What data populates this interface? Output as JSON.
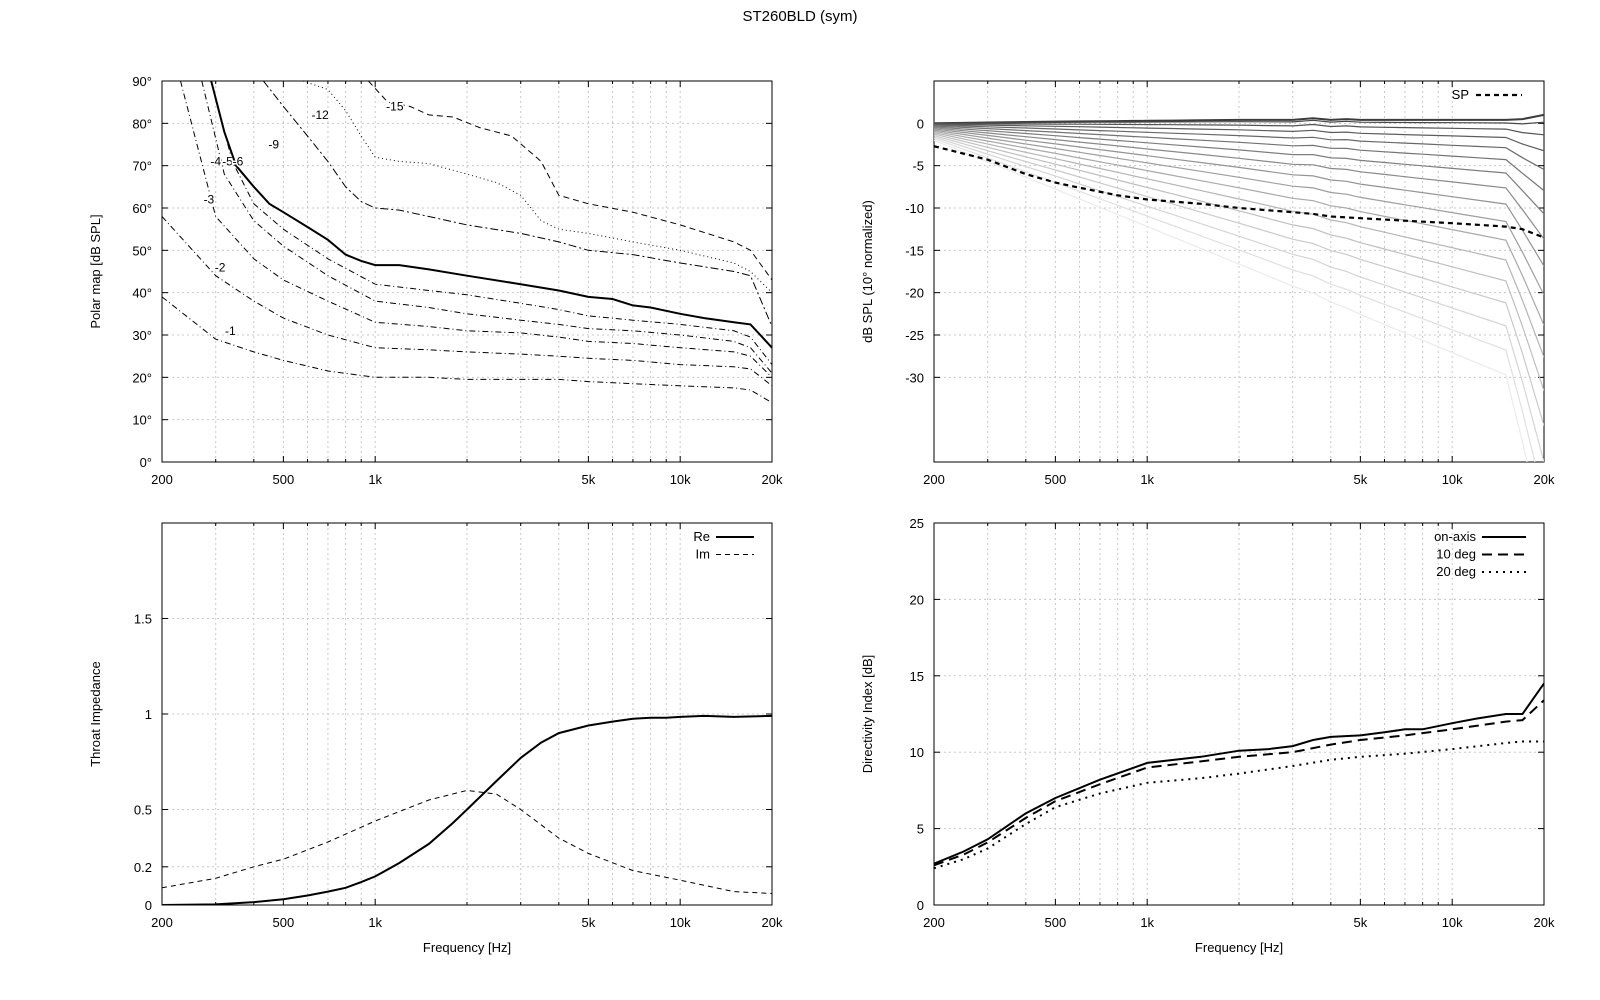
{
  "title": "ST260BLD (sym)",
  "chart_data": [
    {
      "id": "polar",
      "type": "line",
      "title": "",
      "xlabel": "",
      "ylabel": "Polar map [dB SPL]",
      "xscale": "log",
      "xlim": [
        200,
        20000
      ],
      "ylim": [
        0,
        90
      ],
      "xticks": [
        200,
        500,
        1000,
        5000,
        10000,
        20000
      ],
      "xtick_labels": [
        "200",
        "500",
        "1k",
        "5k",
        "10k",
        "20k"
      ],
      "yticks": [
        0,
        10,
        20,
        30,
        40,
        50,
        60,
        70,
        80,
        90
      ],
      "ytick_labels": [
        "0°",
        "10°",
        "20°",
        "30°",
        "40°",
        "50°",
        "60°",
        "70°",
        "80°",
        "90°"
      ],
      "grid": true,
      "contours": [
        {
          "label": "-1",
          "label_at": [
            335,
            31
          ],
          "x": [
            200,
            300,
            400,
            500,
            700,
            1000,
            1500,
            2000,
            3000,
            4000,
            5000,
            7000,
            10000,
            15000,
            17000,
            20000
          ],
          "y": [
            39,
            29,
            26,
            24,
            21.5,
            20,
            20,
            19.5,
            19.5,
            19.5,
            19,
            18.5,
            18,
            17.5,
            17,
            14
          ]
        },
        {
          "label": "-2",
          "label_at": [
            310,
            46
          ],
          "x": [
            200,
            300,
            400,
            500,
            700,
            1000,
            1500,
            2000,
            3000,
            4000,
            5000,
            7000,
            10000,
            15000,
            17000,
            20000
          ],
          "y": [
            58,
            44,
            38,
            34,
            30,
            27,
            26.5,
            26,
            25.5,
            25,
            24.5,
            24,
            23,
            22.5,
            22,
            18
          ]
        },
        {
          "label": "-3",
          "label_at": [
            285,
            62
          ],
          "x": [
            230,
            300,
            400,
            500,
            700,
            1000,
            1500,
            2000,
            3000,
            4000,
            5000,
            7000,
            10000,
            15000,
            17000,
            20000
          ],
          "y": [
            90,
            58,
            48,
            43,
            38,
            33,
            32,
            31,
            30.5,
            29.5,
            28.5,
            28,
            27,
            26,
            25,
            20
          ]
        },
        {
          "label": "-4",
          "label_at": [
            300,
            71
          ],
          "x": [
            270,
            320,
            400,
            500,
            700,
            1000,
            1500,
            2000,
            3000,
            4000,
            5000,
            7000,
            10000,
            15000,
            17000,
            20000
          ],
          "y": [
            90,
            68,
            57,
            51,
            44,
            38,
            36.5,
            35,
            33.5,
            32.5,
            31.5,
            31,
            30,
            28.5,
            27,
            21
          ]
        },
        {
          "label": "-5",
          "label_at": [
            328,
            71
          ],
          "x": [
            290,
            340,
            400,
            500,
            700,
            1000,
            1500,
            2000,
            3000,
            4000,
            5000,
            7000,
            10000,
            15000,
            17000,
            20000
          ],
          "y": [
            90,
            71,
            61,
            55,
            48,
            42,
            40.5,
            39.5,
            37.5,
            36,
            34.5,
            33.5,
            32.5,
            31,
            29.5,
            23
          ]
        },
        {
          "label": "-6",
          "label_at": [
            355,
            71
          ],
          "bold": true,
          "x": [
            290,
            320,
            350,
            400,
            450,
            500,
            600,
            700,
            800,
            900,
            1000,
            1200,
            1500,
            2000,
            3000,
            4000,
            5000,
            6000,
            7000,
            8000,
            10000,
            12000,
            15000,
            17000,
            20000
          ],
          "y": [
            90,
            78,
            70,
            65,
            61,
            59,
            55.5,
            52.5,
            49,
            47.5,
            46.5,
            46.5,
            45.5,
            44,
            42,
            40.5,
            39,
            38.5,
            37,
            36.5,
            35,
            34,
            33,
            32.5,
            27
          ]
        },
        {
          "label": "-9",
          "label_at": [
            465,
            75
          ],
          "x": [
            430,
            500,
            600,
            700,
            800,
            900,
            1000,
            1200,
            1500,
            2000,
            3000,
            4000,
            5000,
            7000,
            10000,
            15000,
            17000,
            20000
          ],
          "y": [
            90,
            84,
            77,
            71,
            65,
            61.5,
            60,
            59.5,
            58,
            56,
            54,
            52,
            50,
            49,
            47,
            45,
            44,
            32
          ]
        },
        {
          "label": "-12",
          "label_at": [
            660,
            82
          ],
          "x": [
            580,
            700,
            800,
            900,
            1000,
            1200,
            1500,
            2000,
            2500,
            3000,
            3500,
            4000,
            5000,
            7000,
            10000,
            15000,
            17000,
            20000
          ],
          "y": [
            90,
            88,
            83,
            77,
            72,
            71,
            70.5,
            68,
            66,
            63,
            57,
            55,
            54,
            52,
            50,
            47,
            45,
            40
          ]
        },
        {
          "label": "-15",
          "label_at": [
            1160,
            84
          ],
          "x": [
            950,
            1100,
            1300,
            1500,
            1800,
            2200,
            2800,
            3500,
            4000,
            5000,
            7000,
            10000,
            15000,
            17000,
            20000
          ],
          "y": [
            90,
            85,
            84,
            82,
            81.5,
            79,
            77,
            71,
            63,
            61,
            59,
            56,
            52,
            50,
            43
          ]
        }
      ]
    },
    {
      "id": "normalized",
      "type": "line",
      "title": "",
      "xlabel": "",
      "ylabel": "dB SPL (10° normalized)",
      "xscale": "log",
      "xlim": [
        200,
        20000
      ],
      "ylim": [
        -40,
        5
      ],
      "xticks": [
        200,
        500,
        1000,
        5000,
        10000,
        20000
      ],
      "xtick_labels": [
        "200",
        "500",
        "1k",
        "5k",
        "10k",
        "20k"
      ],
      "yticks": [
        0,
        -5,
        -10,
        -15,
        -20,
        -25,
        -30
      ],
      "ytick_labels": [
        "0",
        "-5",
        "-10",
        "-15",
        "-20",
        "-25",
        "-30"
      ],
      "grid": true,
      "legend": {
        "position": "top-right",
        "entries": [
          "SP"
        ]
      },
      "sp_series": {
        "name": "SP",
        "x": [
          200,
          300,
          400,
          500,
          600,
          800,
          1000,
          1500,
          2000,
          3000,
          3500,
          4000,
          5000,
          7000,
          10000,
          15000,
          17000,
          20000
        ],
        "y": [
          -2.7,
          -4.3,
          -6,
          -7,
          -7.6,
          -8.5,
          -9,
          -9.5,
          -10,
          -10.5,
          -10.7,
          -11,
          -11.2,
          -11.5,
          -11.8,
          -12.2,
          -12.5,
          -13.5
        ]
      },
      "fan_count": 17,
      "fan_top_x": [
        200,
        300,
        500,
        1000,
        2000,
        3000,
        3500,
        4000,
        4500,
        5000,
        7000,
        10000,
        15000,
        17000,
        20000
      ],
      "fan_top_y": [
        0,
        0.1,
        0.2,
        0.3,
        0.4,
        0.4,
        0.6,
        0.4,
        0.5,
        0.4,
        0.4,
        0.4,
        0.4,
        0.5,
        1
      ]
    },
    {
      "id": "impedance",
      "type": "line",
      "title": "",
      "xlabel": "Frequency [Hz]",
      "ylabel": "Throat Impedance",
      "xscale": "log",
      "xlim": [
        200,
        20000
      ],
      "ylim": [
        0,
        2
      ],
      "xticks": [
        200,
        500,
        1000,
        5000,
        10000,
        20000
      ],
      "xtick_labels": [
        "200",
        "500",
        "1k",
        "5k",
        "10k",
        "20k"
      ],
      "yticks": [
        0,
        0.2,
        0.5,
        1,
        1.5
      ],
      "ytick_labels": [
        "0",
        "0.2",
        "0.5",
        "1",
        "1.5"
      ],
      "grid": true,
      "legend": {
        "position": "top-right",
        "entries": [
          "Re",
          "Im"
        ]
      },
      "series": [
        {
          "name": "Re",
          "style": "solid",
          "x": [
            200,
            300,
            400,
            500,
            600,
            700,
            800,
            900,
            1000,
            1200,
            1500,
            1800,
            2000,
            2500,
            3000,
            3500,
            4000,
            5000,
            6000,
            7000,
            8000,
            9000,
            10000,
            12000,
            15000,
            20000
          ],
          "y": [
            0,
            0.003,
            0.015,
            0.03,
            0.05,
            0.07,
            0.09,
            0.12,
            0.15,
            0.22,
            0.32,
            0.43,
            0.5,
            0.65,
            0.77,
            0.85,
            0.9,
            0.94,
            0.96,
            0.975,
            0.98,
            0.98,
            0.985,
            0.99,
            0.985,
            0.99
          ]
        },
        {
          "name": "Im",
          "style": "dashed",
          "x": [
            200,
            300,
            400,
            500,
            700,
            1000,
            1500,
            2000,
            2500,
            3000,
            3500,
            4000,
            5000,
            7000,
            10000,
            15000,
            20000
          ],
          "y": [
            0.09,
            0.14,
            0.2,
            0.24,
            0.33,
            0.44,
            0.55,
            0.6,
            0.58,
            0.5,
            0.42,
            0.35,
            0.27,
            0.18,
            0.13,
            0.07,
            0.06
          ]
        }
      ]
    },
    {
      "id": "directivity",
      "type": "line",
      "title": "",
      "xlabel": "Frequency [Hz]",
      "ylabel": "Directivity Index [dB]",
      "xscale": "log",
      "xlim": [
        200,
        20000
      ],
      "ylim": [
        0,
        25
      ],
      "xticks": [
        200,
        500,
        1000,
        5000,
        10000,
        20000
      ],
      "xtick_labels": [
        "200",
        "500",
        "1k",
        "5k",
        "10k",
        "20k"
      ],
      "yticks": [
        0,
        5,
        10,
        15,
        20,
        25
      ],
      "ytick_labels": [
        "0",
        "5",
        "10",
        "15",
        "20",
        "25"
      ],
      "grid": true,
      "legend": {
        "position": "top-right",
        "entries": [
          "on-axis",
          "10 deg",
          "20 deg"
        ]
      },
      "series": [
        {
          "name": "on-axis",
          "style": "solid",
          "x": [
            200,
            250,
            300,
            400,
            500,
            700,
            1000,
            1500,
            2000,
            2500,
            3000,
            3500,
            4000,
            5000,
            6000,
            7000,
            8000,
            10000,
            12000,
            15000,
            17000,
            20000
          ],
          "y": [
            2.7,
            3.5,
            4.3,
            6,
            7,
            8.2,
            9.3,
            9.7,
            10.1,
            10.2,
            10.4,
            10.8,
            11,
            11.1,
            11.3,
            11.5,
            11.5,
            11.9,
            12.2,
            12.5,
            12.5,
            14.5
          ]
        },
        {
          "name": "10 deg",
          "style": "dashed",
          "x": [
            200,
            250,
            300,
            400,
            500,
            700,
            1000,
            1500,
            2000,
            3000,
            4000,
            5000,
            7000,
            10000,
            15000,
            17000,
            20000
          ],
          "y": [
            2.6,
            3.3,
            4.1,
            5.7,
            6.8,
            7.9,
            9,
            9.4,
            9.7,
            10,
            10.5,
            10.8,
            11.1,
            11.5,
            12,
            12.1,
            13.4
          ]
        },
        {
          "name": "20 deg",
          "style": "dotted",
          "x": [
            200,
            250,
            300,
            400,
            500,
            700,
            1000,
            1500,
            2000,
            3000,
            4000,
            5000,
            7000,
            10000,
            15000,
            17000,
            20000
          ],
          "y": [
            2.4,
            3,
            3.7,
            5.3,
            6.4,
            7.3,
            8,
            8.3,
            8.6,
            9.1,
            9.5,
            9.7,
            9.9,
            10.2,
            10.6,
            10.7,
            10.7
          ]
        }
      ]
    }
  ]
}
